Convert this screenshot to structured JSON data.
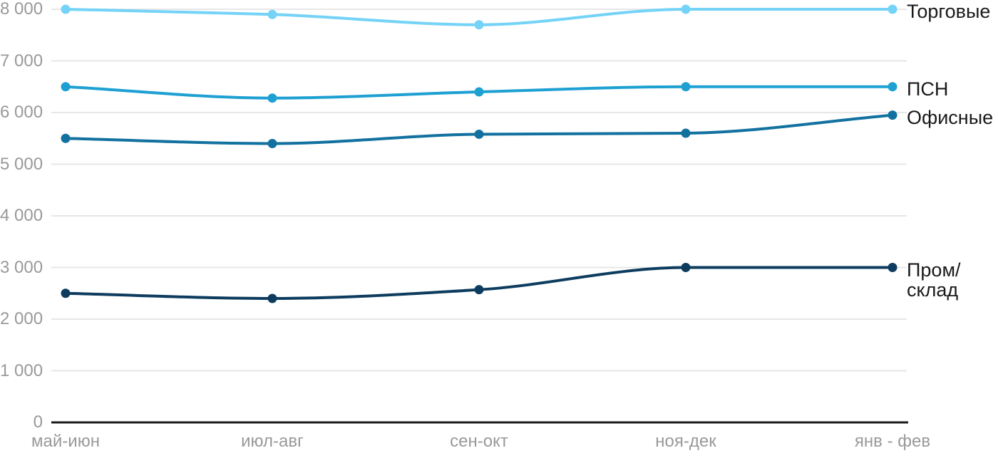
{
  "chart_data": {
    "type": "line",
    "title": "",
    "xlabel": "",
    "ylabel": "",
    "categories": [
      "май-июн",
      "июл-авг",
      "сен-окт",
      "ноя-дек",
      "янв - фев"
    ],
    "series": [
      {
        "key": "torgovye",
        "label": "Торговые",
        "label_lines": [
          "Торговые"
        ],
        "color": "#74D3F6",
        "values": [
          8000,
          7900,
          7700,
          8000,
          8000
        ]
      },
      {
        "key": "psn",
        "label": "ПСН",
        "label_lines": [
          "ПСН"
        ],
        "color": "#1EA0D3",
        "values": [
          6500,
          6280,
          6400,
          6500,
          6500
        ]
      },
      {
        "key": "ofisnye",
        "label": "Офисные",
        "label_lines": [
          "Офисные"
        ],
        "color": "#12719F",
        "values": [
          5500,
          5400,
          5580,
          5600,
          5950
        ]
      },
      {
        "key": "prom-sklad",
        "label": "Пром/склад",
        "label_lines": [
          "Пром/",
          "склад"
        ],
        "color": "#0D3C5F",
        "values": [
          2500,
          2400,
          2570,
          3000,
          3000
        ]
      }
    ],
    "y_axis": {
      "min": 0,
      "max": 8000,
      "tick_interval": 1000,
      "tick_labels": [
        "0",
        "1 000",
        "2 000",
        "3 000",
        "4 000",
        "5 000",
        "6 000",
        "7 000",
        "8 000"
      ]
    },
    "ylim": [
      0,
      8000
    ],
    "grid": "horizontal-only",
    "legend_position": "right-of-last-point"
  },
  "styles": {
    "background": "#FFFFFF",
    "grid_color": "#E7E7E7",
    "axis_color": "#1A1A1A",
    "tick_label_color": "#999999",
    "series_label_color": "#1A1A1A"
  }
}
